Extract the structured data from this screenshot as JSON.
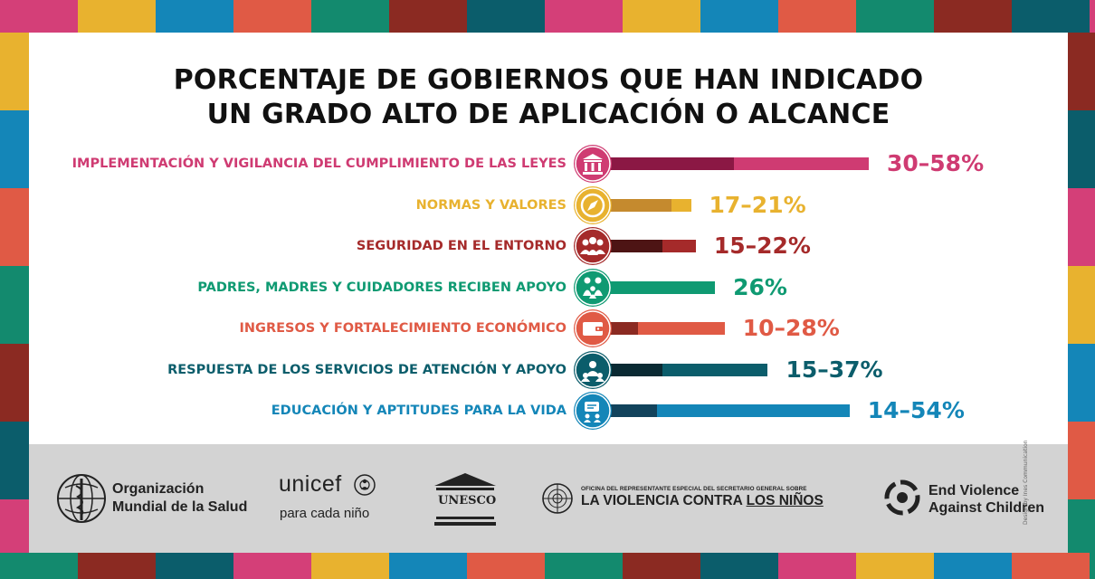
{
  "chart_data": {
    "type": "bar",
    "title": "PORCENTAJE DE GOBIERNOS QUE HAN INDICADO UN GRADO ALTO DE APLICACIÓN O ALCANCE",
    "title_lines": [
      "PORCENTAJE DE GOBIERNOS QUE HAN INDICADO",
      "UN GRADO ALTO DE APLICACIÓN O ALCANCE"
    ],
    "xlim": [
      0,
      58
    ],
    "categories": [
      {
        "label": "IMPLEMENTACIÓN Y VIGILANCIA DEL CUMPLIMIENTO DE LAS LEYES",
        "low": 30,
        "high": 58,
        "value_label": "30–58%",
        "icon": "courthouse-icon",
        "color": "#cf3b72",
        "dark_color": "#8b1844"
      },
      {
        "label": "NORMAS Y VALORES",
        "low": 17,
        "high": 21,
        "value_label": "17–21%",
        "icon": "compass-icon",
        "color": "#e8b22f",
        "dark_color": "#c58a2e"
      },
      {
        "label": "SEGURIDAD EN EL ENTORNO",
        "low": 15,
        "high": 22,
        "value_label": "15–22%",
        "icon": "community-icon",
        "color": "#a52a2a",
        "dark_color": "#4d1414"
      },
      {
        "label": "PADRES, MADRES Y CUIDADORES RECIBEN APOYO",
        "low": 26,
        "high": 26,
        "value_label": "26%",
        "icon": "family-icon",
        "color": "#0f9a72",
        "dark_color": "#0f9a72"
      },
      {
        "label": "INGRESOS Y FORTALECIMIENTO ECONÓMICO",
        "low": 10,
        "high": 28,
        "value_label": "10–28%",
        "icon": "wallet-icon",
        "color": "#e05a45",
        "dark_color": "#8b2a22"
      },
      {
        "label": "RESPUESTA DE LOS SERVICIOS DE ATENCIÓN Y APOYO",
        "low": 15,
        "high": 37,
        "value_label": "15–37%",
        "icon": "support-services-icon",
        "color": "#0b5d6b",
        "dark_color": "#0a2a33"
      },
      {
        "label": "EDUCACIÓN Y APTITUDES PARA LA VIDA",
        "low": 14,
        "high": 54,
        "value_label": "14–54%",
        "icon": "education-icon",
        "color": "#1486b8",
        "dark_color": "#12435c"
      }
    ]
  },
  "logos": {
    "who_line1": "Organización",
    "who_line2": "Mundial de la Salud",
    "unicef_name": "unicef",
    "unicef_tagline": "para cada niño",
    "unesco_name": "UNESCO",
    "srsg_small": "OFICINA DEL REPRESENTANTE ESPECIAL DEL SECRETARIO GENERAL SOBRE",
    "srsg_big_a": "LA VIOLENCIA CONTRA ",
    "srsg_big_b": "LOS NIÑOS",
    "evac_line1": "End Violence",
    "evac_line2": "Against Children"
  },
  "credit": "Design by Ines Communication",
  "colors": {
    "mosaic": [
      "#e8b22f",
      "#d43f78",
      "#0b5d6b",
      "#8b2a22",
      "#138a6e",
      "#e05a45",
      "#1486b8"
    ]
  }
}
